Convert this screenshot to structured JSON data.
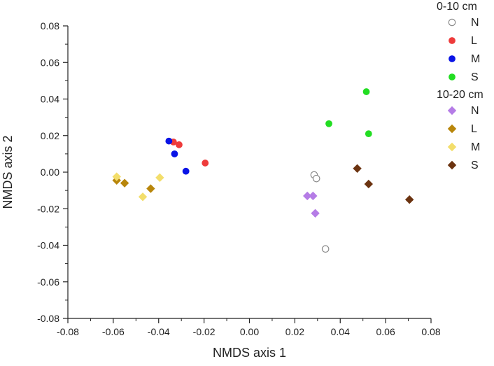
{
  "chart_data": {
    "type": "scatter",
    "title": "",
    "xlabel": "NMDS axis 1",
    "ylabel": "NMDS axis 2",
    "xlim": [
      -0.08,
      0.08
    ],
    "ylim": [
      -0.08,
      0.08
    ],
    "xticks": [
      "-0.08",
      "-0.06",
      "-0.04",
      "-0.02",
      "0.00",
      "0.02",
      "0.04",
      "0.06",
      "0.08"
    ],
    "yticks": [
      "-0.08",
      "-0.06",
      "-0.04",
      "-0.02",
      "0.00",
      "0.02",
      "0.04",
      "0.06",
      "0.08"
    ],
    "grid": false,
    "legend_position": "top-right",
    "groups": [
      {
        "title": "0-10 cm",
        "series": [
          {
            "name": "N",
            "marker": "circle-open",
            "color": "#8a8a8a",
            "points": [
              [
                0.0285,
                -0.0015
              ],
              [
                0.0295,
                -0.0035
              ],
              [
                0.0335,
                -0.042
              ]
            ]
          },
          {
            "name": "L",
            "marker": "circle",
            "color": "#ee3b3b",
            "points": [
              [
                -0.0335,
                0.0165
              ],
              [
                -0.031,
                0.015
              ],
              [
                -0.0195,
                0.005
              ]
            ]
          },
          {
            "name": "M",
            "marker": "circle",
            "color": "#0a14e6",
            "points": [
              [
                -0.0355,
                0.017
              ],
              [
                -0.033,
                0.01
              ],
              [
                -0.028,
                0.0005
              ]
            ]
          },
          {
            "name": "S",
            "marker": "circle",
            "color": "#22dd22",
            "points": [
              [
                0.035,
                0.0265
              ],
              [
                0.0515,
                0.044
              ],
              [
                0.0525,
                0.021
              ]
            ]
          }
        ]
      },
      {
        "title": "10-20 cm",
        "series": [
          {
            "name": "N",
            "marker": "diamond",
            "color": "#b57ce6",
            "points": [
              [
                0.0255,
                -0.013
              ],
              [
                0.028,
                -0.013
              ],
              [
                0.029,
                -0.0225
              ]
            ]
          },
          {
            "name": "L",
            "marker": "diamond",
            "color": "#b8860b",
            "points": [
              [
                -0.0585,
                -0.0045
              ],
              [
                -0.055,
                -0.006
              ],
              [
                -0.0435,
                -0.009
              ]
            ]
          },
          {
            "name": "M",
            "marker": "diamond",
            "color": "#f3de6b",
            "points": [
              [
                -0.0585,
                -0.0025
              ],
              [
                -0.047,
                -0.0135
              ],
              [
                -0.0395,
                -0.003
              ]
            ]
          },
          {
            "name": "S",
            "marker": "diamond",
            "color": "#6b3310",
            "points": [
              [
                0.0475,
                0.002
              ],
              [
                0.0525,
                -0.0065
              ],
              [
                0.0705,
                -0.015
              ]
            ]
          }
        ]
      }
    ]
  }
}
